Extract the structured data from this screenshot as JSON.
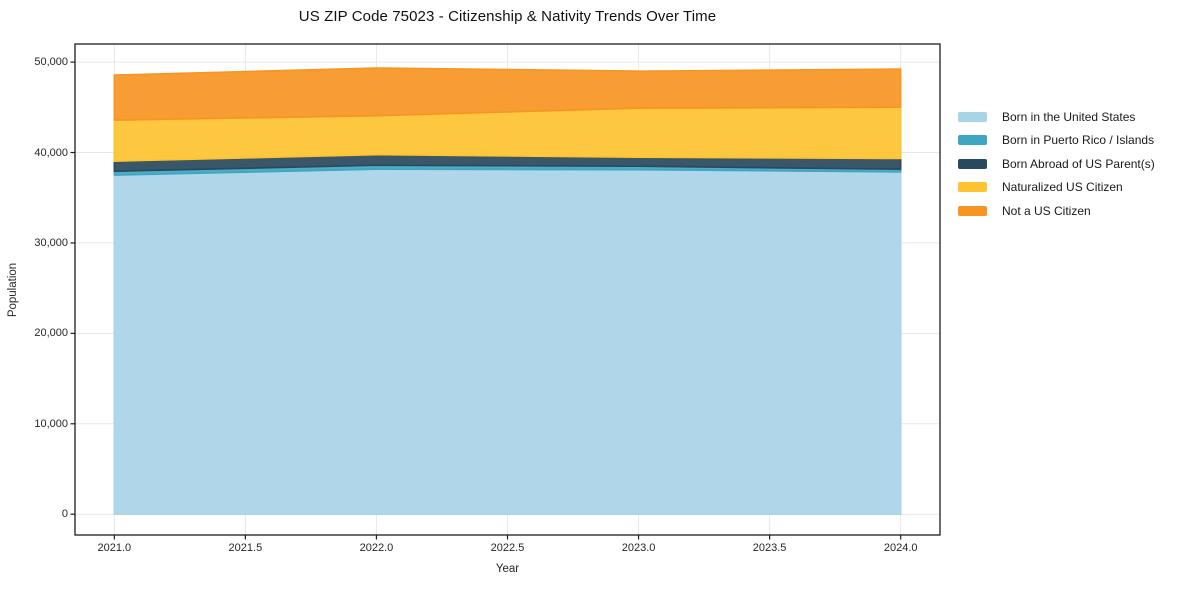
{
  "chart_data": {
    "type": "area",
    "stacked": true,
    "title": "US ZIP Code 75023 - Citizenship & Nativity Trends Over Time",
    "xlabel": "Year",
    "ylabel": "Population",
    "x": [
      2021,
      2022,
      2023,
      2024
    ],
    "series": [
      {
        "name": "Born in the United States",
        "color": "#a9d4e7",
        "values": [
          37500,
          38150,
          38100,
          37850
        ]
      },
      {
        "name": "Born in Puerto Rico / Islands",
        "color": "#3fa5c0",
        "values": [
          430,
          440,
          380,
          300
        ]
      },
      {
        "name": "Born Abroad of US Parent(s)",
        "color": "#29495c",
        "values": [
          1110,
          1170,
          1000,
          1190
        ]
      },
      {
        "name": "Naturalized US Citizen",
        "color": "#fdc330",
        "values": [
          4540,
          4310,
          5430,
          5680
        ]
      },
      {
        "name": "Not a US Citizen",
        "color": "#f79522",
        "values": [
          4980,
          5270,
          4090,
          4210
        ]
      }
    ],
    "totals": [
      48560,
      49340,
      49000,
      49230
    ],
    "x_ticks": [
      {
        "value": 2021.0,
        "label": "2021.0"
      },
      {
        "value": 2021.5,
        "label": "2021.5"
      },
      {
        "value": 2022.0,
        "label": "2022.0"
      },
      {
        "value": 2022.5,
        "label": "2022.5"
      },
      {
        "value": 2023.0,
        "label": "2023.0"
      },
      {
        "value": 2023.5,
        "label": "2023.5"
      },
      {
        "value": 2024.0,
        "label": "2024.0"
      }
    ],
    "y_ticks": [
      {
        "value": 0,
        "label": "0"
      },
      {
        "value": 10000,
        "label": "10,000"
      },
      {
        "value": 20000,
        "label": "20,000"
      },
      {
        "value": 30000,
        "label": "30,000"
      },
      {
        "value": 40000,
        "label": "40,000"
      },
      {
        "value": 50000,
        "label": "50,000"
      }
    ],
    "xlim": [
      2020.85,
      2024.15
    ],
    "ylim": [
      -2300,
      52000
    ],
    "grid": true,
    "grid_color": "#e8e8e8",
    "spine_color": "#1d1d1d",
    "legend_position": "right-outside"
  }
}
